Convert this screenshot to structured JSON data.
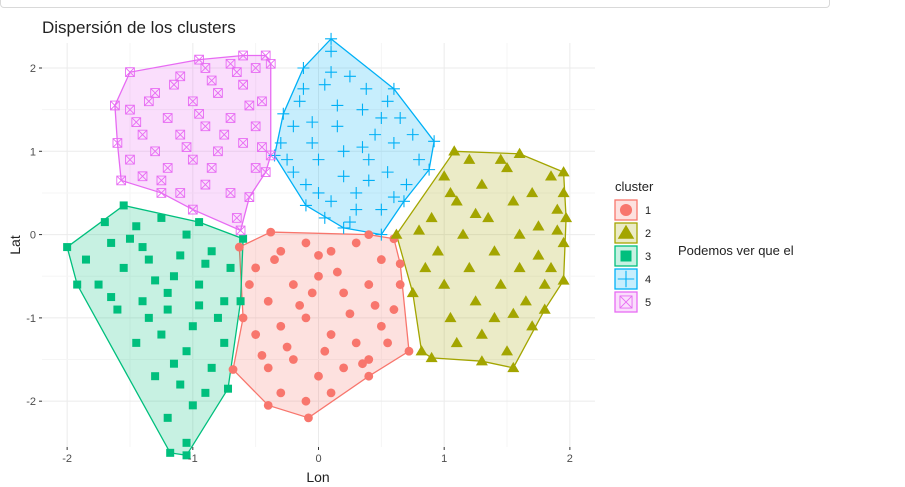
{
  "chart_data": {
    "type": "scatter",
    "title": "Dispersión de los clusters",
    "xlabel": "Lon",
    "ylabel": "Lat",
    "xlim": [
      -2.2,
      2.2
    ],
    "ylim": [
      -2.55,
      2.3
    ],
    "xticks": [
      -2,
      -1,
      0,
      1,
      2
    ],
    "yticks": [
      -2,
      -1,
      0,
      1,
      2
    ],
    "grid": true,
    "legend": {
      "title": "cluster",
      "position": "right"
    },
    "series": [
      {
        "name": "1",
        "color": "#F8766D",
        "shape": "circle",
        "hull": [
          [
            -0.63,
            -0.15
          ],
          [
            -0.38,
            0.03
          ],
          [
            0.4,
            0.0
          ],
          [
            0.6,
            -0.05
          ],
          [
            0.65,
            -0.35
          ],
          [
            0.72,
            -1.4
          ],
          [
            0.4,
            -1.7
          ],
          [
            -0.08,
            -2.2
          ],
          [
            -0.4,
            -2.05
          ],
          [
            -0.68,
            -1.62
          ],
          [
            -0.6,
            -1.0
          ]
        ],
        "points": [
          [
            -0.5,
            -0.4
          ],
          [
            -0.3,
            -0.2
          ],
          [
            -0.1,
            -0.1
          ],
          [
            0.1,
            -0.2
          ],
          [
            0.3,
            -0.1
          ],
          [
            0.5,
            -0.3
          ],
          [
            -0.4,
            -0.8
          ],
          [
            -0.2,
            -0.6
          ],
          [
            0.0,
            -0.5
          ],
          [
            0.2,
            -0.7
          ],
          [
            0.4,
            -0.6
          ],
          [
            0.6,
            -0.9
          ],
          [
            -0.5,
            -1.2
          ],
          [
            -0.3,
            -1.1
          ],
          [
            -0.1,
            -1.0
          ],
          [
            0.1,
            -1.2
          ],
          [
            0.3,
            -1.3
          ],
          [
            0.5,
            -1.1
          ],
          [
            -0.4,
            -1.6
          ],
          [
            -0.2,
            -1.5
          ],
          [
            0.0,
            -1.7
          ],
          [
            0.2,
            -1.6
          ],
          [
            0.4,
            -1.5
          ],
          [
            -0.3,
            -1.9
          ],
          [
            -0.1,
            -2.0
          ],
          [
            0.1,
            -1.9
          ],
          [
            -0.55,
            -0.6
          ],
          [
            0.65,
            -0.6
          ],
          [
            0.0,
            -0.25
          ],
          [
            0.25,
            -0.95
          ],
          [
            -0.25,
            -1.35
          ],
          [
            0.45,
            -0.85
          ],
          [
            -0.45,
            -1.45
          ],
          [
            0.15,
            -0.45
          ],
          [
            -0.15,
            -0.85
          ],
          [
            0.35,
            -1.55
          ],
          [
            -0.35,
            -0.3
          ],
          [
            0.55,
            -1.3
          ],
          [
            0.05,
            -1.4
          ],
          [
            -0.05,
            -0.7
          ]
        ]
      },
      {
        "name": "2",
        "color": "#A3A500",
        "shape": "triangle",
        "hull": [
          [
            0.62,
            0.0
          ],
          [
            1.08,
            1.0
          ],
          [
            1.6,
            0.97
          ],
          [
            1.95,
            0.75
          ],
          [
            1.97,
            0.2
          ],
          [
            1.95,
            -0.55
          ],
          [
            1.8,
            -0.9
          ],
          [
            1.55,
            -1.6
          ],
          [
            1.3,
            -1.52
          ],
          [
            0.9,
            -1.48
          ],
          [
            0.82,
            -1.4
          ],
          [
            0.75,
            -0.7
          ]
        ],
        "points": [
          [
            0.9,
            0.2
          ],
          [
            1.1,
            0.4
          ],
          [
            1.3,
            0.6
          ],
          [
            1.5,
            0.8
          ],
          [
            1.7,
            0.5
          ],
          [
            1.9,
            0.3
          ],
          [
            0.95,
            -0.2
          ],
          [
            1.15,
            0.0
          ],
          [
            1.35,
            0.2
          ],
          [
            1.55,
            0.4
          ],
          [
            1.75,
            0.1
          ],
          [
            1.95,
            -0.1
          ],
          [
            1.0,
            -0.6
          ],
          [
            1.2,
            -0.4
          ],
          [
            1.4,
            -0.2
          ],
          [
            1.6,
            -0.4
          ],
          [
            1.8,
            -0.6
          ],
          [
            1.05,
            -1.0
          ],
          [
            1.25,
            -0.8
          ],
          [
            1.45,
            -0.6
          ],
          [
            1.65,
            -0.8
          ],
          [
            1.85,
            -0.4
          ],
          [
            1.1,
            -1.3
          ],
          [
            1.3,
            -1.2
          ],
          [
            1.5,
            -1.4
          ],
          [
            1.7,
            -1.1
          ],
          [
            1.0,
            0.7
          ],
          [
            1.2,
            0.9
          ],
          [
            1.45,
            0.9
          ],
          [
            1.85,
            0.7
          ],
          [
            0.85,
            -0.4
          ],
          [
            1.6,
            0.0
          ],
          [
            1.4,
            -1.0
          ],
          [
            1.9,
            0.05
          ],
          [
            1.25,
            0.25
          ],
          [
            1.75,
            -0.25
          ],
          [
            1.05,
            0.5
          ],
          [
            1.55,
            -0.95
          ],
          [
            1.95,
            0.5
          ],
          [
            0.8,
            0.05
          ]
        ]
      },
      {
        "name": "3",
        "color": "#00BF7D",
        "shape": "square",
        "hull": [
          [
            -2.0,
            -0.15
          ],
          [
            -1.55,
            0.35
          ],
          [
            -0.95,
            0.15
          ],
          [
            -0.6,
            -0.05
          ],
          [
            -0.62,
            -0.8
          ],
          [
            -0.72,
            -1.85
          ],
          [
            -1.05,
            -2.65
          ],
          [
            -1.18,
            -2.62
          ],
          [
            -1.92,
            -0.6
          ]
        ],
        "points": [
          [
            -1.85,
            -0.3
          ],
          [
            -1.65,
            -0.1
          ],
          [
            -1.45,
            0.1
          ],
          [
            -1.25,
            0.2
          ],
          [
            -1.05,
            0.0
          ],
          [
            -0.85,
            -0.2
          ],
          [
            -0.7,
            -0.4
          ],
          [
            -1.75,
            -0.6
          ],
          [
            -1.55,
            -0.4
          ],
          [
            -1.35,
            -0.3
          ],
          [
            -1.15,
            -0.5
          ],
          [
            -0.95,
            -0.6
          ],
          [
            -0.75,
            -0.8
          ],
          [
            -1.6,
            -0.9
          ],
          [
            -1.4,
            -0.8
          ],
          [
            -1.2,
            -0.9
          ],
          [
            -1.0,
            -1.1
          ],
          [
            -0.8,
            -1.0
          ],
          [
            -1.45,
            -1.3
          ],
          [
            -1.25,
            -1.2
          ],
          [
            -1.05,
            -1.4
          ],
          [
            -0.85,
            -1.6
          ],
          [
            -1.3,
            -1.7
          ],
          [
            -1.1,
            -1.8
          ],
          [
            -0.9,
            -1.9
          ],
          [
            -1.2,
            -2.2
          ],
          [
            -1.05,
            -2.5
          ],
          [
            -1.5,
            -0.05
          ],
          [
            -1.3,
            -0.55
          ],
          [
            -1.1,
            -0.25
          ],
          [
            -0.9,
            -0.35
          ],
          [
            -1.65,
            -0.75
          ],
          [
            -1.35,
            -1.0
          ],
          [
            -0.95,
            -0.85
          ],
          [
            -1.15,
            -1.55
          ],
          [
            -0.75,
            -1.3
          ],
          [
            -1.7,
            0.15
          ],
          [
            -1.4,
            -0.15
          ],
          [
            -1.2,
            -0.7
          ],
          [
            -1.0,
            -2.05
          ]
        ]
      },
      {
        "name": "4",
        "color": "#00B0F6",
        "shape": "plus",
        "hull": [
          [
            -0.35,
            0.95
          ],
          [
            -0.28,
            1.45
          ],
          [
            -0.12,
            2.0
          ],
          [
            0.1,
            2.35
          ],
          [
            0.6,
            1.75
          ],
          [
            0.92,
            1.12
          ],
          [
            0.88,
            0.78
          ],
          [
            0.68,
            0.4
          ],
          [
            0.5,
            0.0
          ],
          [
            0.2,
            0.08
          ],
          [
            -0.1,
            0.35
          ]
        ],
        "points": [
          [
            -0.25,
            0.9
          ],
          [
            -0.05,
            1.1
          ],
          [
            0.15,
            1.3
          ],
          [
            0.35,
            1.5
          ],
          [
            0.55,
            1.6
          ],
          [
            -0.15,
            1.6
          ],
          [
            0.05,
            1.8
          ],
          [
            0.25,
            1.9
          ],
          [
            0.1,
            2.2
          ],
          [
            -0.2,
            1.3
          ],
          [
            0.0,
            0.9
          ],
          [
            0.2,
            0.7
          ],
          [
            0.4,
            0.9
          ],
          [
            0.6,
            1.1
          ],
          [
            0.8,
            0.9
          ],
          [
            -0.1,
            0.6
          ],
          [
            0.1,
            0.4
          ],
          [
            0.3,
            0.5
          ],
          [
            0.5,
            0.3
          ],
          [
            0.7,
            0.6
          ],
          [
            0.25,
            0.15
          ],
          [
            -0.3,
            1.1
          ],
          [
            0.45,
            1.2
          ],
          [
            0.65,
            1.4
          ],
          [
            0.15,
            1.55
          ],
          [
            -0.05,
            1.35
          ],
          [
            0.35,
            1.05
          ],
          [
            0.55,
            0.75
          ],
          [
            0.3,
            0.3
          ],
          [
            0.0,
            0.5
          ],
          [
            0.2,
            1.0
          ],
          [
            0.4,
            0.65
          ],
          [
            -0.2,
            0.75
          ],
          [
            0.1,
            1.95
          ],
          [
            0.5,
            1.4
          ],
          [
            0.75,
            1.2
          ],
          [
            0.6,
            0.45
          ],
          [
            0.05,
            0.2
          ],
          [
            -0.12,
            1.75
          ],
          [
            0.38,
            1.75
          ]
        ]
      },
      {
        "name": "5",
        "color": "#E76BF3",
        "shape": "boxcross",
        "hull": [
          [
            -1.62,
            1.55
          ],
          [
            -1.5,
            1.95
          ],
          [
            -0.95,
            2.1
          ],
          [
            -0.6,
            2.15
          ],
          [
            -0.42,
            2.15
          ],
          [
            -0.38,
            2.05
          ],
          [
            -0.38,
            0.95
          ],
          [
            -0.42,
            0.75
          ],
          [
            -0.55,
            0.45
          ],
          [
            -0.62,
            0.05
          ],
          [
            -1.0,
            0.3
          ],
          [
            -1.25,
            0.5
          ],
          [
            -1.57,
            0.65
          ],
          [
            -1.6,
            1.1
          ]
        ],
        "points": [
          [
            -1.5,
            1.5
          ],
          [
            -1.3,
            1.7
          ],
          [
            -1.1,
            1.9
          ],
          [
            -0.9,
            2.0
          ],
          [
            -0.7,
            2.05
          ],
          [
            -0.5,
            2.0
          ],
          [
            -1.4,
            1.2
          ],
          [
            -1.2,
            1.4
          ],
          [
            -1.0,
            1.6
          ],
          [
            -0.8,
            1.7
          ],
          [
            -0.6,
            1.8
          ],
          [
            -0.45,
            1.6
          ],
          [
            -1.5,
            0.9
          ],
          [
            -1.3,
            1.0
          ],
          [
            -1.1,
            1.2
          ],
          [
            -0.9,
            1.3
          ],
          [
            -0.7,
            1.4
          ],
          [
            -0.5,
            1.3
          ],
          [
            -1.4,
            0.7
          ],
          [
            -1.2,
            0.8
          ],
          [
            -1.0,
            0.9
          ],
          [
            -0.8,
            1.0
          ],
          [
            -0.6,
            1.1
          ],
          [
            -1.1,
            0.5
          ],
          [
            -0.9,
            0.6
          ],
          [
            -0.7,
            0.5
          ],
          [
            -0.65,
            0.2
          ],
          [
            -0.5,
            0.8
          ],
          [
            -1.35,
            1.6
          ],
          [
            -1.15,
            1.8
          ],
          [
            -0.95,
            1.45
          ],
          [
            -0.75,
            1.2
          ],
          [
            -0.55,
            1.55
          ],
          [
            -1.45,
            1.35
          ],
          [
            -1.25,
            0.65
          ],
          [
            -0.85,
            0.8
          ],
          [
            -0.65,
            1.95
          ],
          [
            -1.05,
            1.05
          ],
          [
            -0.45,
            1.05
          ],
          [
            -0.85,
            1.85
          ]
        ]
      }
    ]
  },
  "note": "Podemos ver que el"
}
